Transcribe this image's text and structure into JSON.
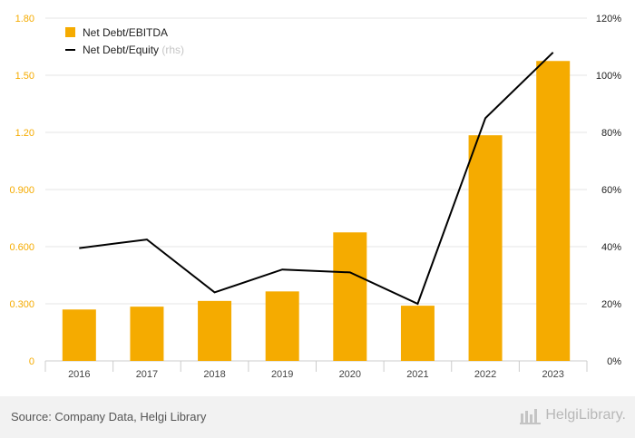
{
  "chart_data": {
    "type": "bar",
    "categories": [
      "2016",
      "2017",
      "2018",
      "2019",
      "2020",
      "2021",
      "2022",
      "2023"
    ],
    "series": [
      {
        "name": "Net Debt/EBITDA",
        "type": "bar",
        "axis": "left",
        "values": [
          0.27,
          0.285,
          0.315,
          0.365,
          0.675,
          0.29,
          1.185,
          1.575
        ]
      },
      {
        "name": "Net Debt/Equity",
        "name_suffix": "(rhs)",
        "type": "line",
        "axis": "right",
        "values": [
          39.5,
          42.5,
          24,
          32,
          31,
          20,
          85,
          108
        ]
      }
    ],
    "y_left": {
      "min": 0,
      "max": 1.8,
      "ticks": [
        "0",
        "0.300",
        "0.600",
        "0.900",
        "1.20",
        "1.50",
        "1.80"
      ]
    },
    "y_right": {
      "min": 0,
      "max": 120,
      "ticks": [
        "0%",
        "20%",
        "40%",
        "60%",
        "80%",
        "100%",
        "120%"
      ]
    },
    "grid": true,
    "legend_position": "top-left",
    "colors": {
      "bar": "#f5ab00",
      "line": "#000000",
      "left_axis_text": "#f5ab00",
      "muted": "#c6c6c6"
    }
  },
  "footer": {
    "source": "Source: Company Data, Helgi Library",
    "brand": "HelgiLibrary."
  }
}
